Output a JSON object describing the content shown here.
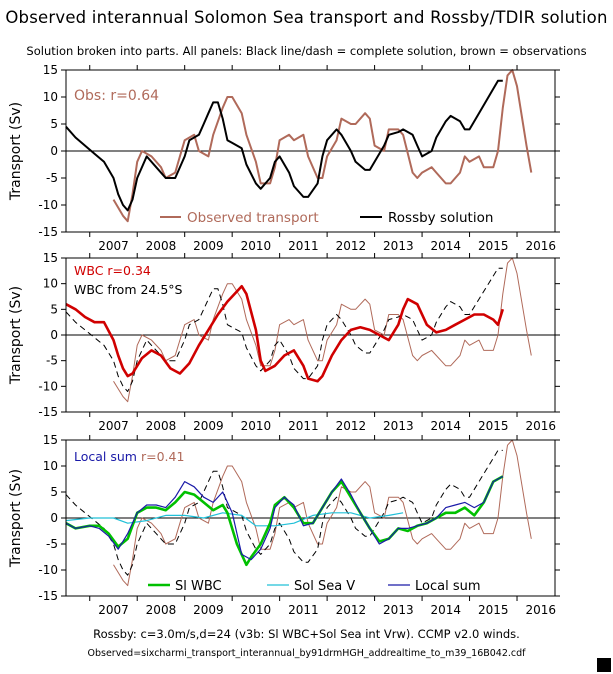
{
  "title": "Observed interannual Solomon Sea transport and Rossby/TDIR solution",
  "subtitle": "Solution broken into parts. All panels: Black line/dash = complete solution, brown = observations",
  "footer_line1": "Rossby: c=3.0m/s,d=24 (v3b: Sl WBC+Sol Sea int Vrw). CCMP v2.0 winds.",
  "footer_line2": "Observed=sixcharmi_transport_interannual_by91drmHGH_addrealtime_to_m39_16B042.cdf",
  "colors": {
    "observations": "#b06a5a",
    "complete": "#000000",
    "wbc": "#d00000",
    "sl_wbc": "#00c000",
    "sol_sea_v": "#20c0d8",
    "local_sum": "#1a1aa8"
  },
  "chart_data": [
    {
      "type": "line",
      "panel_label": "Obs: r=0.64",
      "ylabel": "Transport (Sv)",
      "ylim": [
        -15,
        15
      ],
      "yticks": [
        -15,
        -10,
        -5,
        0,
        5,
        10,
        15
      ],
      "xlim": [
        2006.5,
        2016.8
      ],
      "xtick_labels": [
        "2007",
        "2008",
        "2009",
        "2010",
        "2011",
        "2012",
        "2013",
        "2014",
        "2015",
        "2016"
      ],
      "legend": [
        "Observed transport",
        "Rossby solution"
      ],
      "legend_placement": "bottom",
      "series": [
        {
          "name": "Observed transport",
          "key": "obs",
          "style": "solid",
          "x": [
            2007.5,
            2007.7,
            2007.8,
            2007.9,
            2008.0,
            2008.1,
            2008.3,
            2008.5,
            2008.6,
            2008.8,
            2008.9,
            2009.0,
            2009.2,
            2009.3,
            2009.5,
            2009.6,
            2009.8,
            2009.9,
            2010.0,
            2010.2,
            2010.3,
            2010.5,
            2010.6,
            2010.8,
            2010.9,
            2011.0,
            2011.2,
            2011.3,
            2011.5,
            2011.6,
            2011.8,
            2011.9,
            2012.0,
            2012.2,
            2012.3,
            2012.5,
            2012.6,
            2012.8,
            2012.9,
            2013.0,
            2013.2,
            2013.3,
            2013.5,
            2013.6,
            2013.8,
            2013.9,
            2014.0,
            2014.2,
            2014.3,
            2014.5,
            2014.6,
            2014.8,
            2014.9,
            2015.0,
            2015.2,
            2015.3,
            2015.5,
            2015.6,
            2015.7,
            2015.8,
            2015.9,
            2016.0,
            2016.2,
            2016.3
          ],
          "y": [
            -9,
            -12,
            -13,
            -8,
            -2,
            0,
            -1,
            -3,
            -5,
            -4,
            -1,
            2,
            3,
            0,
            -1,
            3,
            8,
            10,
            10,
            7,
            3,
            -2,
            -6,
            -6,
            -3,
            2,
            3,
            2,
            3,
            -1,
            -5,
            -5,
            -1,
            2,
            6,
            5,
            5,
            7,
            6,
            1,
            0,
            4,
            4,
            3,
            -4,
            -5,
            -4,
            -3,
            -4,
            -6,
            -6,
            -4,
            -1,
            -2,
            -1,
            -3,
            -3,
            0,
            8,
            14,
            15,
            12,
            1,
            -4
          ]
        },
        {
          "name": "Rossby solution",
          "key": "rossby",
          "style": "solid",
          "x": [
            2006.5,
            2006.7,
            2006.9,
            2007.1,
            2007.3,
            2007.5,
            2007.6,
            2007.7,
            2007.8,
            2007.9,
            2008.0,
            2008.2,
            2008.4,
            2008.6,
            2008.8,
            2009.0,
            2009.1,
            2009.3,
            2009.4,
            2009.5,
            2009.6,
            2009.7,
            2009.8,
            2009.9,
            2010.0,
            2010.2,
            2010.3,
            2010.5,
            2010.6,
            2010.8,
            2010.9,
            2011.0,
            2011.2,
            2011.3,
            2011.5,
            2011.6,
            2011.8,
            2011.9,
            2012.0,
            2012.2,
            2012.3,
            2012.5,
            2012.6,
            2012.8,
            2012.9,
            2013.0,
            2013.2,
            2013.3,
            2013.5,
            2013.6,
            2013.8,
            2013.9,
            2014.0,
            2014.2,
            2014.3,
            2014.5,
            2014.6,
            2014.8,
            2014.9,
            2015.0,
            2015.2,
            2015.4,
            2015.6,
            2015.7
          ],
          "y": [
            4.5,
            2.5,
            1.0,
            -0.5,
            -2,
            -5,
            -8,
            -10,
            -11,
            -9,
            -5,
            -1,
            -3,
            -5,
            -5,
            -1,
            2,
            3,
            5,
            7,
            9,
            9,
            6,
            2,
            1.5,
            0.5,
            -2.5,
            -6,
            -7,
            -5,
            -2,
            -1,
            -4,
            -6.5,
            -8.5,
            -8.5,
            -6,
            -1,
            2,
            4,
            3,
            0,
            -2,
            -3.5,
            -3.5,
            -2,
            1,
            3,
            3.5,
            4,
            3,
            1,
            -1,
            0,
            2.5,
            5.5,
            6.5,
            5.5,
            4,
            4,
            7,
            10,
            13,
            13
          ]
        }
      ]
    },
    {
      "type": "line",
      "panel_label": "WBC r=0.34",
      "series_label": "WBC from 24.5°S",
      "ylabel": "Transport (Sv)",
      "ylim": [
        -15,
        15
      ],
      "yticks": [
        -15,
        -10,
        -5,
        0,
        5,
        10,
        15
      ],
      "xlim": [
        2006.5,
        2016.8
      ],
      "xtick_labels": [
        "2007",
        "2008",
        "2009",
        "2010",
        "2011",
        "2012",
        "2013",
        "2014",
        "2015",
        "2016"
      ],
      "series": [
        {
          "key": "obs",
          "style": "thin",
          "same_as": "observations"
        },
        {
          "key": "rossby",
          "style": "dash",
          "same_as": "complete solution"
        },
        {
          "name": "WBC from 24.5°S",
          "key": "wbc",
          "style": "thick",
          "x": [
            2006.5,
            2006.7,
            2006.9,
            2007.1,
            2007.3,
            2007.5,
            2007.6,
            2007.7,
            2007.8,
            2007.9,
            2008.1,
            2008.3,
            2008.5,
            2008.7,
            2008.9,
            2009.1,
            2009.3,
            2009.5,
            2009.7,
            2009.9,
            2010.0,
            2010.2,
            2010.3,
            2010.5,
            2010.6,
            2010.7,
            2010.9,
            2011.1,
            2011.3,
            2011.5,
            2011.6,
            2011.8,
            2011.9,
            2012.1,
            2012.3,
            2012.5,
            2012.7,
            2012.9,
            2013.1,
            2013.3,
            2013.5,
            2013.6,
            2013.7,
            2013.9,
            2014.1,
            2014.3,
            2014.5,
            2014.7,
            2014.9,
            2015.1,
            2015.3,
            2015.5,
            2015.6,
            2015.7
          ],
          "y": [
            6,
            5,
            3.5,
            2.5,
            2.5,
            -1,
            -4,
            -6.5,
            -8,
            -7.5,
            -4.5,
            -3,
            -4,
            -6.5,
            -7.5,
            -5.5,
            -2,
            1,
            4,
            6.5,
            7.5,
            9.5,
            8,
            1,
            -5,
            -7,
            -6,
            -4,
            -3,
            -6,
            -8.5,
            -9,
            -8,
            -4,
            -1,
            1,
            1.5,
            1,
            0,
            -1,
            2,
            5,
            7,
            6,
            2,
            0.5,
            1,
            2,
            3,
            4,
            4,
            3,
            2,
            5
          ]
        }
      ]
    },
    {
      "type": "line",
      "panel_label": "Local sum r=0.41",
      "ylabel": "Transport (Sv)",
      "ylim": [
        -15,
        15
      ],
      "yticks": [
        -15,
        -10,
        -5,
        0,
        5,
        10,
        15
      ],
      "xlim": [
        2006.5,
        2016.8
      ],
      "xtick_labels": [
        "2007",
        "2008",
        "2009",
        "2010",
        "2011",
        "2012",
        "2013",
        "2014",
        "2015",
        "2016"
      ],
      "legend": [
        "Sl WBC",
        "Sol Sea V",
        "Local sum"
      ],
      "legend_placement": "bottom",
      "series": [
        {
          "key": "obs",
          "style": "thin",
          "same_as": "observations"
        },
        {
          "key": "rossby",
          "style": "dash",
          "same_as": "complete solution"
        },
        {
          "name": "Sol Sea V",
          "key": "solsea",
          "style": "thin",
          "x": [
            2006.5,
            2007.0,
            2007.5,
            2007.8,
            2008.2,
            2008.6,
            2009.0,
            2009.4,
            2009.8,
            2010.2,
            2010.5,
            2010.9,
            2011.3,
            2011.7,
            2012.1,
            2012.5,
            2012.9,
            2013.3,
            2013.6
          ],
          "y": [
            -0.5,
            0,
            0,
            -1,
            -0.5,
            0.5,
            0.5,
            0,
            1,
            0.5,
            -1.5,
            -1.5,
            -1,
            0.5,
            1,
            1,
            0,
            0.5,
            1
          ]
        },
        {
          "name": "Sl WBC",
          "key": "slwbc",
          "style": "thick",
          "x": [
            2006.5,
            2006.7,
            2007.0,
            2007.2,
            2007.4,
            2007.6,
            2007.8,
            2008.0,
            2008.2,
            2008.4,
            2008.6,
            2008.8,
            2009.0,
            2009.2,
            2009.4,
            2009.6,
            2009.8,
            2009.9,
            2010.1,
            2010.3,
            2010.4,
            2010.6,
            2010.8,
            2010.9,
            2011.1,
            2011.3,
            2011.5,
            2011.7,
            2011.9,
            2012.1,
            2012.3,
            2012.5,
            2012.7,
            2012.9,
            2013.1,
            2013.3,
            2013.5,
            2013.7,
            2013.9,
            2014.1,
            2014.3,
            2014.5,
            2014.7,
            2014.9,
            2015.1,
            2015.3,
            2015.5,
            2015.7
          ],
          "y": [
            -1,
            -2,
            -1.5,
            -1.5,
            -3,
            -5.5,
            -4,
            1,
            2,
            2,
            1.5,
            3,
            5,
            4.5,
            3,
            1.5,
            2.5,
            1,
            -5,
            -9,
            -7.5,
            -5,
            -1,
            2.5,
            4,
            2,
            -1,
            -1,
            2,
            5,
            7,
            4,
            1,
            -2,
            -4.5,
            -4,
            -2,
            -2.5,
            -1.5,
            -1,
            0,
            1,
            1,
            2,
            0.5,
            3,
            7,
            8
          ]
        },
        {
          "name": "Local sum",
          "key": "localsum",
          "style": "thin",
          "x": [
            2006.5,
            2006.7,
            2007.0,
            2007.2,
            2007.4,
            2007.6,
            2007.8,
            2008.0,
            2008.2,
            2008.4,
            2008.6,
            2008.8,
            2009.0,
            2009.2,
            2009.4,
            2009.6,
            2009.8,
            2010.0,
            2010.2,
            2010.4,
            2010.6,
            2010.8,
            2010.9,
            2011.1,
            2011.3,
            2011.5,
            2011.7,
            2011.9,
            2012.1,
            2012.3,
            2012.5,
            2012.7,
            2012.9,
            2013.1,
            2013.3,
            2013.5,
            2013.7,
            2013.9,
            2014.1,
            2014.3,
            2014.5,
            2014.7,
            2014.9,
            2015.1,
            2015.3,
            2015.5,
            2015.7
          ],
          "y": [
            -1,
            -2,
            -1.5,
            -2,
            -3.5,
            -6,
            -3,
            1,
            2.5,
            2.5,
            2,
            4,
            7,
            6,
            4,
            3,
            5,
            1,
            -7,
            -8,
            -6,
            -2,
            2,
            4,
            2.5,
            -1.5,
            -1,
            2,
            5,
            7.5,
            4.5,
            1,
            -2,
            -5,
            -4,
            -2,
            -2,
            -1.5,
            -1,
            0,
            2,
            2.5,
            3,
            2,
            3,
            7,
            8
          ]
        }
      ]
    }
  ]
}
